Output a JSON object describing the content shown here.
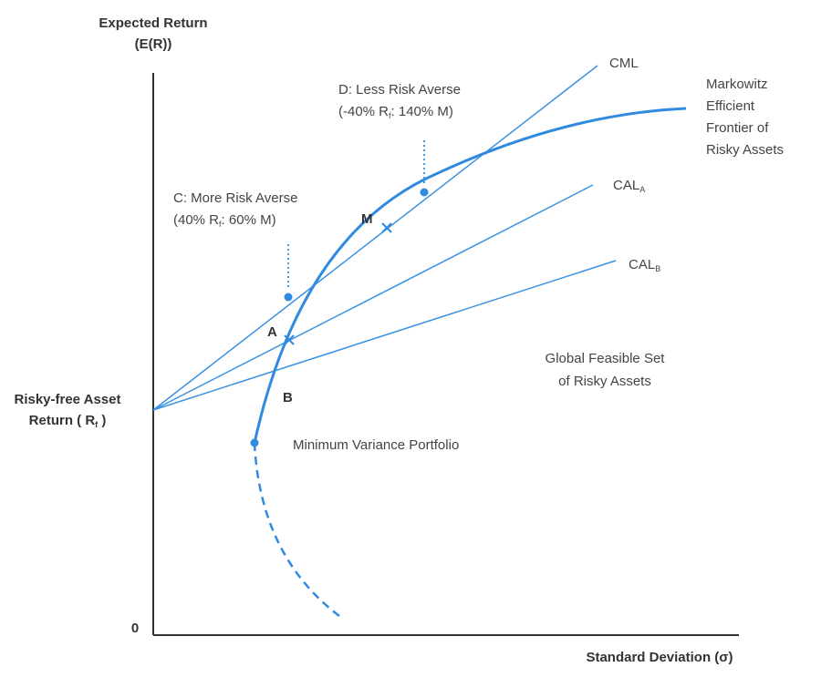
{
  "axes": {
    "y_label_line1": "Expected Return",
    "y_label_line2": "(E(R))",
    "x_label": "Standard Deviation (σ)",
    "origin": "0",
    "rf_label_line1": "Risky-free Asset",
    "rf_label_line2_prefix": "Return ( R",
    "rf_label_line2_sub": "f",
    "rf_label_line2_suffix": " )"
  },
  "lines": {
    "cml": "CML",
    "cal_a": "CAL",
    "cal_a_sub": "A",
    "cal_b": "CAL",
    "cal_b_sub": "B"
  },
  "frontier": {
    "line1": "Markowitz",
    "line2": "Efficient",
    "line3": "Frontier of",
    "line4": "Risky Assets"
  },
  "points": {
    "m": "M",
    "a": "A",
    "b": "B",
    "min_variance": "Minimum Variance Portfolio"
  },
  "annotations": {
    "c_line1": "C: More Risk Averse",
    "c_line2_prefix": "(40% R",
    "c_line2_sub": "f",
    "c_line2_suffix": ": 60% M)",
    "d_line1": "D: Less Risk Averse",
    "d_line2_prefix": "(-40% R",
    "d_line2_sub": "f",
    "d_line2_suffix": ": 140% M)"
  },
  "feasible_set": {
    "line1": "Global Feasible Set",
    "line2": "of Risky Assets"
  },
  "colors": {
    "accent": "#2f8ae0",
    "axis": "#333333",
    "text": "#444444"
  }
}
